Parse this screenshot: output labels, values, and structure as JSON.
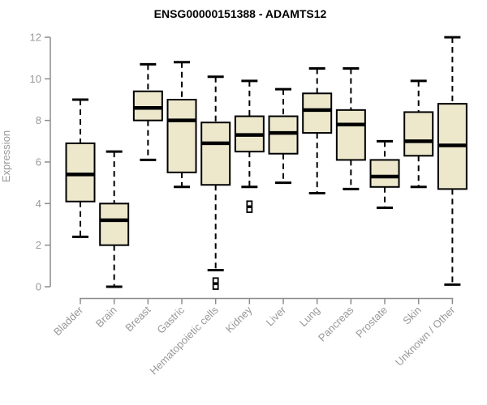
{
  "chart_data": {
    "type": "boxplot",
    "title": "ENSG00000151388 - ADAMTS12",
    "ylabel": "Expression",
    "xlabel": "",
    "ylim": [
      0,
      12
    ],
    "yticks": [
      0,
      2,
      4,
      6,
      8,
      10,
      12
    ],
    "grid": false,
    "legend": "none",
    "categories": [
      "Bladder",
      "Brain",
      "Breast",
      "Gastric",
      "Hematopoietic cells",
      "Kidney",
      "Liver",
      "Lung",
      "Pancreas",
      "Prostate",
      "Skin",
      "Unknown / Other"
    ],
    "series": [
      {
        "name": "Bladder",
        "low": 2.4,
        "q1": 4.1,
        "median": 5.4,
        "q3": 6.9,
        "high": 9.0,
        "outliers": []
      },
      {
        "name": "Brain",
        "low": 0.0,
        "q1": 2.0,
        "median": 3.2,
        "q3": 4.0,
        "high": 6.5,
        "outliers": []
      },
      {
        "name": "Breast",
        "low": 6.1,
        "q1": 8.0,
        "median": 8.6,
        "q3": 9.4,
        "high": 10.7,
        "outliers": []
      },
      {
        "name": "Gastric",
        "low": 4.8,
        "q1": 5.5,
        "median": 8.0,
        "q3": 9.0,
        "high": 10.8,
        "outliers": []
      },
      {
        "name": "Hematopoietic cells",
        "low": 0.8,
        "q1": 4.9,
        "median": 6.9,
        "q3": 7.9,
        "high": 10.1,
        "outliers": [
          0.3,
          0.0
        ]
      },
      {
        "name": "Kidney",
        "low": 4.8,
        "q1": 6.5,
        "median": 7.3,
        "q3": 8.2,
        "high": 9.9,
        "outliers": [
          4.0,
          3.7
        ]
      },
      {
        "name": "Liver",
        "low": 5.0,
        "q1": 6.4,
        "median": 7.4,
        "q3": 8.2,
        "high": 9.5,
        "outliers": []
      },
      {
        "name": "Lung",
        "low": 4.5,
        "q1": 7.4,
        "median": 8.5,
        "q3": 9.3,
        "high": 10.5,
        "outliers": []
      },
      {
        "name": "Pancreas",
        "low": 4.7,
        "q1": 6.1,
        "median": 7.8,
        "q3": 8.5,
        "high": 10.5,
        "outliers": []
      },
      {
        "name": "Prostate",
        "low": 3.8,
        "q1": 4.8,
        "median": 5.3,
        "q3": 6.1,
        "high": 7.0,
        "outliers": []
      },
      {
        "name": "Skin",
        "low": 4.8,
        "q1": 6.3,
        "median": 7.0,
        "q3": 8.4,
        "high": 9.9,
        "outliers": []
      },
      {
        "name": "Unknown / Other",
        "low": 0.1,
        "q1": 4.7,
        "median": 6.8,
        "q3": 8.8,
        "high": 12.0,
        "outliers": []
      }
    ],
    "colors": {
      "box_fill": "#EDE8CC",
      "box_border": "#000000",
      "median": "#000000",
      "whisker": "#000000",
      "outlier_fill": "#ffffff",
      "axis": "#8C8C8C",
      "tick_label": "#989898",
      "title": "#000000",
      "background": "#FFFFFF"
    }
  }
}
